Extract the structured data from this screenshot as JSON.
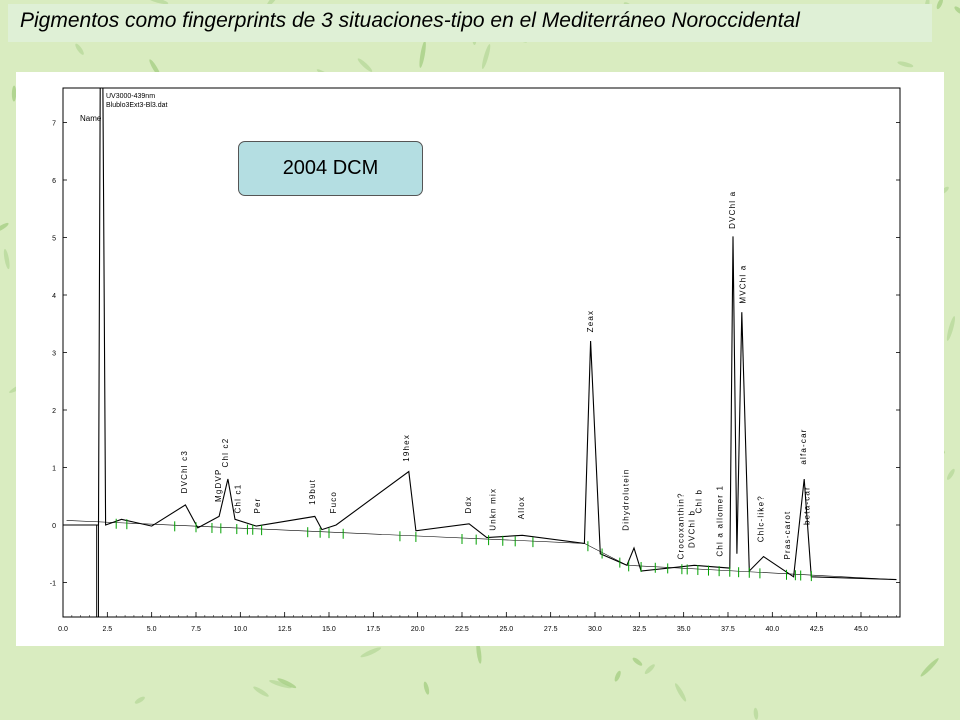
{
  "slide": {
    "title": "Pigmentos como fingerprints de 3 situaciones-tipo en el Mediterráneo Noroccidental"
  },
  "label_box": {
    "text": "2004 DCM",
    "fill": "#b4dee2"
  },
  "colors": {
    "background": "#d9ecc0",
    "title_band": "#dff0d6",
    "trace": "#000000",
    "integration_marks": "#00a000"
  },
  "chart_data": {
    "type": "line",
    "header_lines": [
      "UV3000-439nm",
      "Blublo3Ext3-Bl3.dat"
    ],
    "header_name": "Name",
    "xlim": [
      0,
      47.2
    ],
    "ylim": [
      -1.6,
      7.6
    ],
    "x_ticks": [
      "0.0",
      "2.5",
      "5.0",
      "7.5",
      "10.0",
      "12.5",
      "15.0",
      "17.5",
      "20.0",
      "22.5",
      "25.0",
      "27.5",
      "30.0",
      "32.5",
      "35.0",
      "37.5",
      "40.0",
      "42.5",
      "45.0"
    ],
    "y_ticks": [
      "-1",
      "0",
      "1",
      "2",
      "3",
      "4",
      "5",
      "6",
      "7"
    ],
    "series": [
      {
        "values": [
          [
            0.0,
            0.0
          ],
          [
            2.0,
            0.0
          ],
          [
            2.1,
            7.6
          ],
          [
            2.25,
            7.6
          ],
          [
            2.4,
            0.0
          ],
          [
            3.3,
            0.1
          ],
          [
            5.0,
            -0.02
          ],
          [
            6.9,
            0.35
          ],
          [
            7.6,
            -0.05
          ],
          [
            8.8,
            0.15
          ],
          [
            9.3,
            0.8
          ],
          [
            9.7,
            0.1
          ],
          [
            10.9,
            -0.02
          ],
          [
            14.2,
            0.15
          ],
          [
            14.6,
            -0.08
          ],
          [
            15.4,
            0.0
          ],
          [
            19.5,
            0.93
          ],
          [
            19.9,
            -0.1
          ],
          [
            22.9,
            0.02
          ],
          [
            23.9,
            -0.22
          ],
          [
            25.9,
            -0.18
          ],
          [
            29.4,
            -0.32
          ],
          [
            29.75,
            3.2
          ],
          [
            30.3,
            -0.5
          ],
          [
            31.8,
            -0.7
          ],
          [
            32.2,
            -0.4
          ],
          [
            32.6,
            -0.8
          ],
          [
            35.6,
            -0.7
          ],
          [
            37.6,
            -0.75
          ],
          [
            37.78,
            5.02
          ],
          [
            38.0,
            -0.5
          ],
          [
            38.28,
            3.7
          ],
          [
            38.7,
            -0.8
          ],
          [
            39.5,
            -0.55
          ],
          [
            41.2,
            -0.9
          ],
          [
            41.8,
            0.8
          ],
          [
            42.2,
            -0.9
          ],
          [
            47.0,
            -0.95
          ]
        ]
      }
    ],
    "peak_labels": [
      {
        "text": "DVChl c3",
        "x": 7.0,
        "y": 0.55
      },
      {
        "text": "MgDVP",
        "x": 8.9,
        "y": 0.4
      },
      {
        "text": "Chl c2",
        "x": 9.3,
        "y": 1.0
      },
      {
        "text": "Chl c1",
        "x": 10.0,
        "y": 0.2
      },
      {
        "text": "Per",
        "x": 11.1,
        "y": 0.2
      },
      {
        "text": "19but",
        "x": 14.2,
        "y": 0.35
      },
      {
        "text": "Fuco",
        "x": 15.4,
        "y": 0.2
      },
      {
        "text": "19hex",
        "x": 19.5,
        "y": 1.1
      },
      {
        "text": "Ddx",
        "x": 23.0,
        "y": 0.2
      },
      {
        "text": "Unkn mix",
        "x": 24.4,
        "y": -0.1
      },
      {
        "text": "Allox",
        "x": 26.0,
        "y": 0.1
      },
      {
        "text": "Zeax",
        "x": 29.9,
        "y": 3.35
      },
      {
        "text": "Dihydrolutein",
        "x": 31.9,
        "y": -0.1
      },
      {
        "text": "Crocoxanthin?",
        "x": 35.0,
        "y": -0.6
      },
      {
        "text": "DVChl b",
        "x": 35.6,
        "y": -0.4
      },
      {
        "text": "Chl b",
        "x": 36.0,
        "y": 0.2
      },
      {
        "text": "Chl a allomer 1",
        "x": 37.2,
        "y": -0.55
      },
      {
        "text": "DVChl a",
        "x": 37.9,
        "y": 5.15
      },
      {
        "text": "MVChl a",
        "x": 38.5,
        "y": 3.85
      },
      {
        "text": "Chlc-like?",
        "x": 39.5,
        "y": -0.3
      },
      {
        "text": "Pras-carot",
        "x": 41.0,
        "y": -0.6
      },
      {
        "text": "alfa-car",
        "x": 41.9,
        "y": 1.05
      },
      {
        "text": "beta-car",
        "x": 42.1,
        "y": 0.0
      }
    ]
  }
}
